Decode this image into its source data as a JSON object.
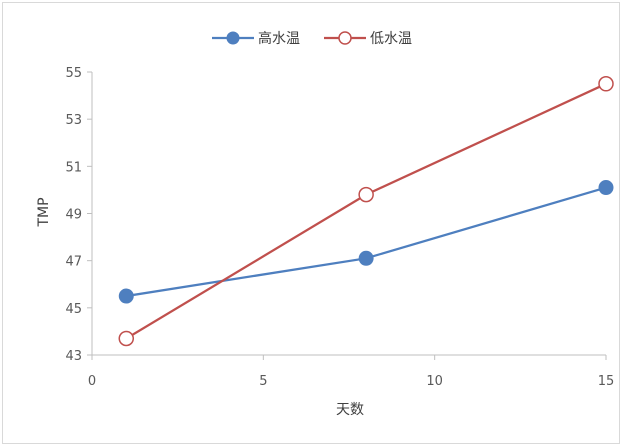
{
  "chart_data": {
    "type": "line",
    "title": "",
    "xlabel": "天数",
    "ylabel": "TMP",
    "xlim": [
      0,
      15
    ],
    "ylim": [
      43,
      55
    ],
    "xticks": [
      0,
      5,
      10,
      15
    ],
    "yticks": [
      43,
      45,
      47,
      49,
      51,
      53,
      55
    ],
    "grid": false,
    "legend_position": "top",
    "series": [
      {
        "name": "高水温",
        "color": "#4e7fbf",
        "marker": "filled-circle",
        "x": [
          1,
          8,
          15
        ],
        "y": [
          45.5,
          47.1,
          50.1
        ]
      },
      {
        "name": "低水温",
        "color": "#c0504d",
        "marker": "open-circle",
        "x": [
          1,
          8,
          15
        ],
        "y": [
          43.7,
          49.8,
          54.5
        ]
      }
    ]
  }
}
